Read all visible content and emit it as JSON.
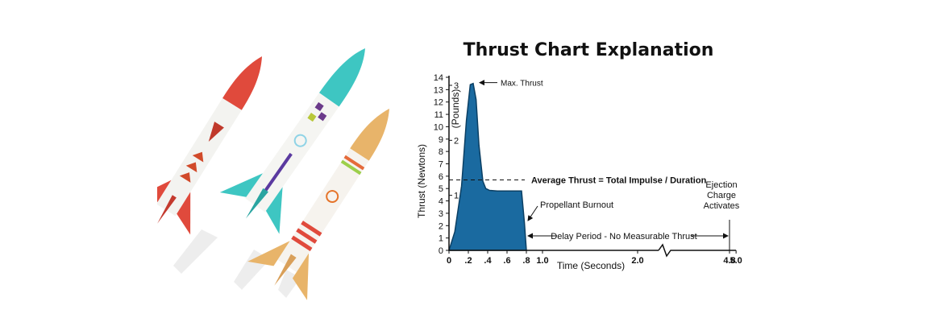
{
  "chart_data": {
    "type": "area",
    "title": "Thrust Chart Explanation",
    "xlabel": "Time (Seconds)",
    "ylabel": "Thrust (Newtons)",
    "ylabel2": "(Pounds)",
    "x_ticks_compressed": [
      {
        "value": 0,
        "label": "0"
      },
      {
        "value": 0.2,
        "label": ".2"
      },
      {
        "value": 0.4,
        "label": ".4"
      },
      {
        "value": 0.6,
        "label": ".6"
      },
      {
        "value": 0.8,
        "label": ".8"
      }
    ],
    "x_ticks_expanded": [
      {
        "value": 1.0,
        "label": "1.0"
      },
      {
        "value": 2.0,
        "label": "2.0"
      },
      {
        "value": 4.8,
        "label": "4.8"
      },
      {
        "value": 5.0,
        "label": "5.0"
      }
    ],
    "y_ticks": [
      "0",
      "1",
      "2",
      "3",
      "4",
      "5",
      "6",
      "7",
      "8",
      "9",
      "10",
      "11",
      "12",
      "13",
      "14"
    ],
    "y_ticks_pounds": [
      {
        "value": 1,
        "newtons": 4.45
      },
      {
        "value": 2,
        "newtons": 8.9
      },
      {
        "value": 3,
        "newtons": 13.35
      }
    ],
    "ylim": [
      0,
      14
    ],
    "series": [
      {
        "x": [
          0,
          0.06,
          0.13,
          0.18,
          0.22,
          0.25,
          0.28,
          0.31,
          0.35,
          0.38,
          0.42,
          0.5,
          0.6,
          0.7,
          0.75,
          0.78,
          0.8
        ],
        "y": [
          0,
          1.5,
          5.2,
          10.5,
          13.4,
          13.5,
          12.2,
          8.5,
          5.6,
          5.0,
          4.85,
          4.8,
          4.8,
          4.8,
          4.8,
          2.2,
          0
        ]
      }
    ],
    "average_thrust": 5.7,
    "annotations": {
      "max_thrust": "Max. Thrust",
      "average": "Average Thrust = Total Impulse / Duration",
      "burnout": "Propellant Burnout",
      "delay": "Delay Period - No Measurable Thrust",
      "ejection": [
        "Ejection",
        "Charge",
        "Activates"
      ]
    },
    "colors": {
      "fill": "#1a6aa0",
      "stroke": "#0b3f63",
      "axis": "#111111"
    }
  }
}
